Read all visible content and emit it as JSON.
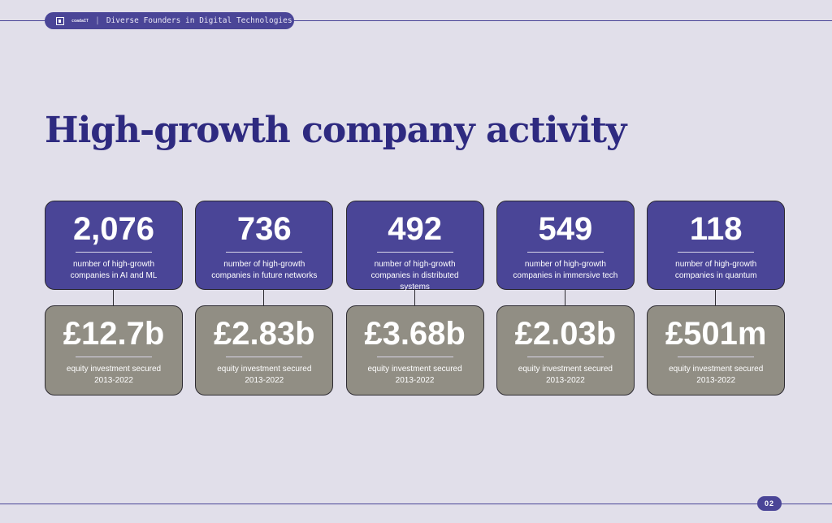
{
  "header": {
    "logo_text": "coadaIT",
    "title": "Diverse Founders in Digital Technologies"
  },
  "page_title": "High-growth company activity",
  "colors": {
    "accent": "#4a4597",
    "secondary": "#918e84",
    "title": "#2e2a80"
  },
  "stats": [
    {
      "count": "2,076",
      "count_label": "number of high-growth companies in AI and ML",
      "investment": "£12.7b",
      "investment_label": "equity investment secured",
      "period": "2013-2022"
    },
    {
      "count": "736",
      "count_label": "number of high-growth companies in future networks",
      "investment": "£2.83b",
      "investment_label": "equity investment secured",
      "period": "2013-2022"
    },
    {
      "count": "492",
      "count_label": "number of high-growth companies in distributed systems",
      "investment": "£3.68b",
      "investment_label": "equity investment secured",
      "period": "2013-2022"
    },
    {
      "count": "549",
      "count_label": "number of high-growth companies in immersive tech",
      "investment": "£2.03b",
      "investment_label": "equity investment secured",
      "period": "2013-2022"
    },
    {
      "count": "118",
      "count_label": "number of high-growth companies in quantum",
      "investment": "£501m",
      "investment_label": "equity investment secured",
      "period": "2013-2022"
    }
  ],
  "page_number": "02"
}
